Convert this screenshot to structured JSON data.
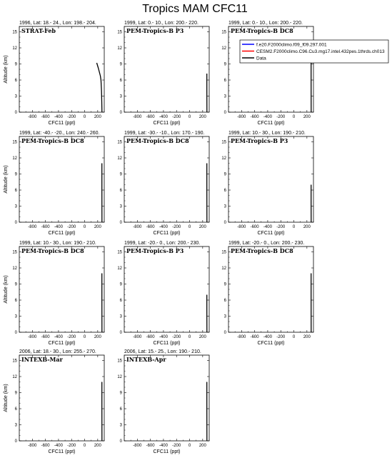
{
  "figure_title": "Tropics MAM CFC11",
  "legend": {
    "entries": [
      {
        "label": "f.e20.F2000climo.f09_f09.297.001",
        "color": "#0000ff"
      },
      {
        "label": "CESM2.F2000climo.C96.Cu3.mg17.intel.432pes.1thrds.ch013",
        "color": "#ff0000"
      },
      {
        "label": "Data",
        "color": "#000000"
      }
    ]
  },
  "chart_data": [
    {
      "type": "line",
      "title": "1996, Lat: 18.- 24., Lon: 198.- 204.",
      "campaign": "STRAT-Feb",
      "xlabel": "CFC11 (ppt)",
      "ylabel": "Altitude (km)",
      "xlim": [
        -1000,
        300
      ],
      "ylim": [
        0,
        16
      ],
      "xticks": [
        -800,
        -600,
        -400,
        -200,
        0,
        200
      ],
      "yticks": [
        0,
        3,
        6,
        9,
        12,
        15
      ],
      "series": [
        {
          "name": "Data",
          "color": "#000000",
          "x": [
            265,
            262,
            258,
            250,
            240,
            225,
            210,
            195,
            185
          ],
          "y": [
            0,
            2,
            4,
            6,
            6.8,
            7.5,
            8.2,
            8.8,
            9.2
          ]
        }
      ]
    },
    {
      "type": "line",
      "title": "1999, Lat: 0.- 10., Lon: 200.- 220.",
      "campaign": "PEM-Tropics-B P3",
      "xlabel": "CFC11 (ppt)",
      "ylabel": "",
      "xlim": [
        -1000,
        300
      ],
      "ylim": [
        0,
        16
      ],
      "xticks": [
        -800,
        -600,
        -400,
        -200,
        0,
        200
      ],
      "yticks": [
        0,
        3,
        6,
        9,
        12,
        15
      ],
      "series": [
        {
          "name": "Data",
          "color": "#000000",
          "x": [
            265,
            264,
            264
          ],
          "y": [
            0,
            4,
            7.2
          ]
        }
      ]
    },
    {
      "type": "line",
      "title": "1999, Lat: 0.- 10., Lon: 200.- 220.",
      "campaign": "PEM-Tropics-B DC8",
      "xlabel": "CFC11 (ppt)",
      "ylabel": "",
      "xlim": [
        -1000,
        300
      ],
      "ylim": [
        0,
        16
      ],
      "xticks": [
        -800,
        -600,
        -400,
        -200,
        0,
        200
      ],
      "yticks": [
        0,
        3,
        6,
        9,
        12,
        15
      ],
      "series": [
        {
          "name": "Data",
          "color": "#000000",
          "x": [
            265,
            264,
            264
          ],
          "y": [
            0,
            6,
            11.5
          ]
        }
      ]
    },
    {
      "type": "line",
      "title": "1999, Lat: -40.- -20., Lon: 240.- 260.",
      "campaign": "PEM-Tropics-B DC8",
      "xlabel": "CFC11 (ppt)",
      "ylabel": "Altitude (km)",
      "xlim": [
        -1000,
        300
      ],
      "ylim": [
        0,
        16
      ],
      "xticks": [
        -800,
        -600,
        -400,
        -200,
        0,
        200
      ],
      "yticks": [
        0,
        3,
        6,
        9,
        12,
        15
      ],
      "series": [
        {
          "name": "Data",
          "color": "#000000",
          "x": [
            265,
            264,
            264
          ],
          "y": [
            0,
            6,
            11
          ]
        }
      ]
    },
    {
      "type": "line",
      "title": "1999, Lat: -30.- -10., Lon: 170.- 190.",
      "campaign": "PEM-Tropics-B DC8",
      "xlabel": "CFC11 (ppt)",
      "ylabel": "",
      "xlim": [
        -1000,
        300
      ],
      "ylim": [
        0,
        16
      ],
      "xticks": [
        -800,
        -600,
        -400,
        -200,
        0,
        200
      ],
      "yticks": [
        0,
        3,
        6,
        9,
        12,
        15
      ],
      "series": [
        {
          "name": "Data",
          "color": "#000000",
          "x": [
            265,
            264,
            264
          ],
          "y": [
            0,
            6,
            11
          ]
        }
      ]
    },
    {
      "type": "line",
      "title": "1999, Lat: 10.- 30., Lon: 190.- 210.",
      "campaign": "PEM-Tropics-B P3",
      "xlabel": "CFC11 (ppt)",
      "ylabel": "",
      "xlim": [
        -1000,
        300
      ],
      "ylim": [
        0,
        16
      ],
      "xticks": [
        -800,
        -600,
        -400,
        -200,
        0,
        200
      ],
      "yticks": [
        0,
        3,
        6,
        9,
        12,
        15
      ],
      "series": [
        {
          "name": "Data",
          "color": "#000000",
          "x": [
            265,
            264,
            264
          ],
          "y": [
            0,
            4,
            7
          ]
        }
      ]
    },
    {
      "type": "line",
      "title": "1999, Lat: 10.- 30., Lon: 190.- 210.",
      "campaign": "PEM-Tropics-B DC8",
      "xlabel": "CFC11 (ppt)",
      "ylabel": "Altitude (km)",
      "xlim": [
        -1000,
        300
      ],
      "ylim": [
        0,
        16
      ],
      "xticks": [
        -800,
        -600,
        -400,
        -200,
        0,
        200
      ],
      "yticks": [
        0,
        3,
        6,
        9,
        12,
        15
      ],
      "series": [
        {
          "name": "Data",
          "color": "#000000",
          "x": [
            265,
            264,
            264
          ],
          "y": [
            0,
            6,
            11
          ]
        }
      ]
    },
    {
      "type": "line",
      "title": "1999, Lat: -20.- 0., Lon: 200.- 230.",
      "campaign": "PEM-Tropics-B P3",
      "xlabel": "CFC11 (ppt)",
      "ylabel": "",
      "xlim": [
        -1000,
        300
      ],
      "ylim": [
        0,
        16
      ],
      "xticks": [
        -800,
        -600,
        -400,
        -200,
        0,
        200
      ],
      "yticks": [
        0,
        3,
        6,
        9,
        12,
        15
      ],
      "series": [
        {
          "name": "Data",
          "color": "#000000",
          "x": [
            265,
            264,
            264
          ],
          "y": [
            0,
            4,
            7
          ]
        }
      ]
    },
    {
      "type": "line",
      "title": "1999, Lat: -20.- 0., Lon: 200.- 230.",
      "campaign": "PEM-Tropics-B DC8",
      "xlabel": "CFC11 (ppt)",
      "ylabel": "",
      "xlim": [
        -1000,
        300
      ],
      "ylim": [
        0,
        16
      ],
      "xticks": [
        -800,
        -600,
        -400,
        -200,
        0,
        200
      ],
      "yticks": [
        0,
        3,
        6,
        9,
        12,
        15
      ],
      "series": [
        {
          "name": "Data",
          "color": "#000000",
          "x": [
            265,
            264,
            264
          ],
          "y": [
            0,
            6,
            11
          ]
        }
      ]
    },
    {
      "type": "line",
      "title": "2006, Lat: 18.- 30., Lon: 255.- 270.",
      "campaign": "INTEXB-Mar",
      "xlabel": "CFC11 (ppt)",
      "ylabel": "Altitude (km)",
      "xlim": [
        -1000,
        300
      ],
      "ylim": [
        0,
        16
      ],
      "xticks": [
        -800,
        -600,
        -400,
        -200,
        0,
        200
      ],
      "yticks": [
        0,
        3,
        6,
        9,
        12,
        15
      ],
      "series": [
        {
          "name": "Data",
          "color": "#000000",
          "x": [
            265,
            264,
            264
          ],
          "y": [
            0,
            6,
            11
          ]
        }
      ]
    },
    {
      "type": "line",
      "title": "2006, Lat: 15.- 25., Lon: 190.- 210.",
      "campaign": "INTEXB-Apr",
      "xlabel": "CFC11 (ppt)",
      "ylabel": "",
      "xlim": [
        -1000,
        300
      ],
      "ylim": [
        0,
        16
      ],
      "xticks": [
        -800,
        -600,
        -400,
        -200,
        0,
        200
      ],
      "yticks": [
        0,
        3,
        6,
        9,
        12,
        15
      ],
      "series": [
        {
          "name": "Data",
          "color": "#000000",
          "x": [
            265,
            264,
            264
          ],
          "y": [
            0,
            6,
            11
          ]
        }
      ]
    }
  ]
}
